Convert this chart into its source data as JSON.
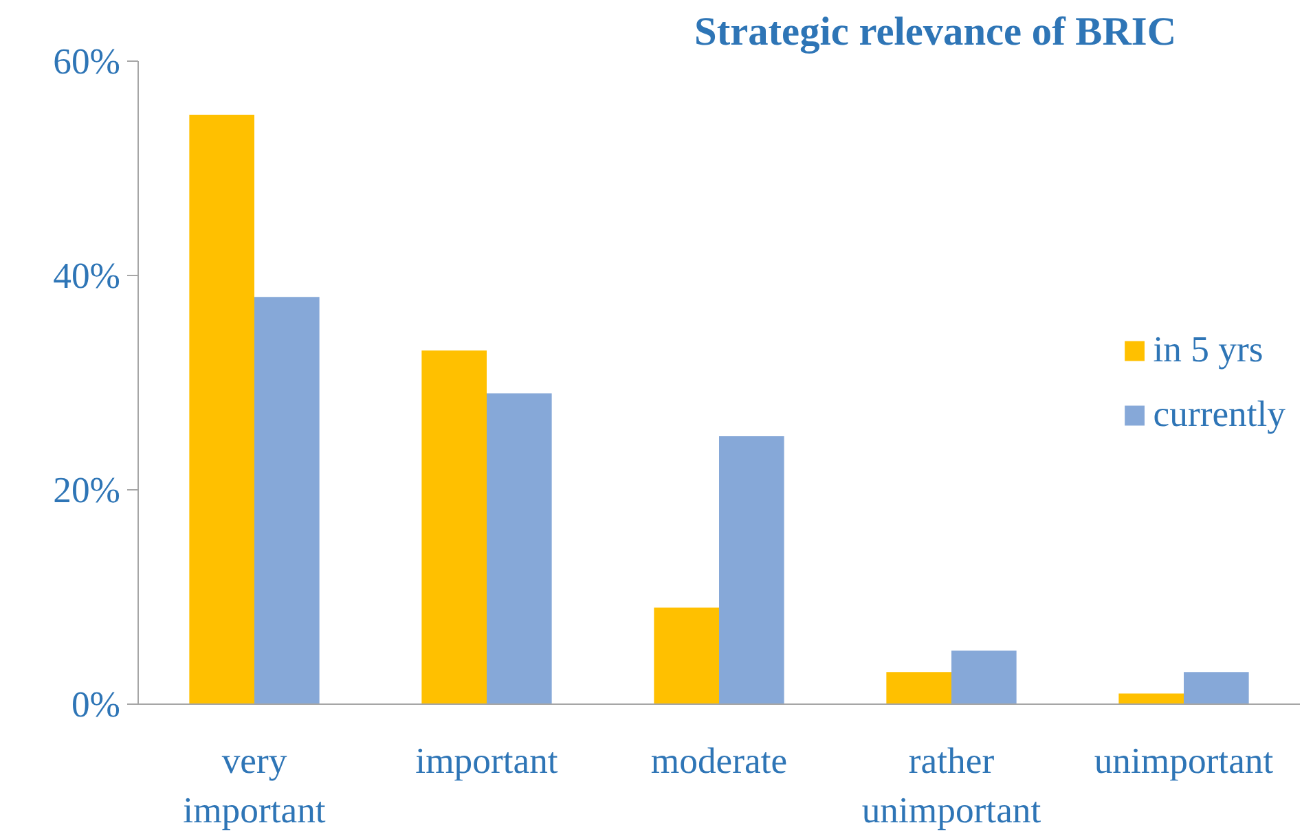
{
  "chart_data": {
    "type": "bar",
    "title": "Strategic relevance of BRIC",
    "categories": [
      "very important",
      "important",
      "moderate",
      "rather unimportant",
      "unimportant"
    ],
    "series": [
      {
        "name": "in 5 yrs",
        "color": "#ffc000",
        "values": [
          55,
          33,
          9,
          3,
          1
        ]
      },
      {
        "name": "currently",
        "color": "#86a8d8",
        "values": [
          38,
          29,
          25,
          5,
          3
        ]
      }
    ],
    "ylim": [
      0,
      60
    ],
    "yticks": [
      {
        "value": 0,
        "label": "0%"
      },
      {
        "value": 20,
        "label": "20%"
      },
      {
        "value": 40,
        "label": "40%"
      },
      {
        "value": 60,
        "label": "60%"
      }
    ],
    "grid": false,
    "legend": "right"
  }
}
